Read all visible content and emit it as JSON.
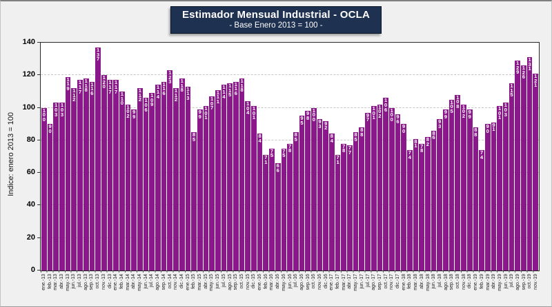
{
  "title": {
    "main": "Estimador Mensual Industrial - OCLA",
    "subtitle": "- Base Enero 2013 = 100 -"
  },
  "colors": {
    "bar": "#8b188b",
    "title_box_bg": "#1e3150",
    "plot_bg": "#ffffff",
    "page_bg": "#f0f0f0",
    "gridline": "#c6c6c6",
    "value_label": "#ffffff"
  },
  "chart_data": {
    "type": "bar",
    "title": "Estimador Mensual Industrial - OCLA",
    "subtitle": "- Base Enero 2013 = 100 -",
    "xlabel": "",
    "ylabel": "Indice: enero 2013 = 100",
    "ylim": [
      0,
      140
    ],
    "yticks": [
      0,
      20,
      40,
      60,
      80,
      100,
      120,
      140
    ],
    "gridline_values": [
      20,
      40,
      60,
      80,
      100,
      120
    ],
    "grid": "horizontal-dashed",
    "legend": "none",
    "value_labels_shown": true,
    "categories": [
      "ene.-13",
      "feb.-13",
      "mar.-13",
      "abr.-13",
      "may.-13",
      "jun.-13",
      "jul.-13",
      "ago.-13",
      "sep.-13",
      "oct.-13",
      "nov.-13",
      "dic.-13",
      "ene.-14",
      "feb.-14",
      "mar.-14",
      "abr.-14",
      "may.-14",
      "jun.-14",
      "jul.-14",
      "ago.-14",
      "sep.-14",
      "oct.-14",
      "nov.-14",
      "dic.-14",
      "ene.-15",
      "feb.-15",
      "mar.-15",
      "abr.-15",
      "may.-15",
      "jun.-15",
      "jul.-15",
      "ago.-15",
      "sep.-15",
      "oct.-15",
      "nov.-15",
      "dic.-15",
      "ene.-16",
      "feb.-16",
      "mar.-16",
      "abr.-16",
      "may.-16",
      "jun.-16",
      "jul.-16",
      "ago.-16",
      "sep.-16",
      "oct.-16",
      "nov.-16",
      "dic.-16",
      "ene.-17",
      "feb.-17",
      "mar.-17",
      "abr.-17",
      "may.-17",
      "jun.-17",
      "jul.-17",
      "ago.-17",
      "sep.-17",
      "oct.-17",
      "nov.-17",
      "dic.-17",
      "ene.-18",
      "feb.-18",
      "mar.-18",
      "abr.-18",
      "may.-18",
      "jun.-18",
      "jul.-18",
      "ago.-18",
      "sep.-18",
      "oct.-18",
      "nov.-18",
      "dic.-18",
      "ene.-19",
      "feb.-19",
      "mar.-19",
      "abr.-19",
      "may.-19",
      "jun.-19",
      "jul.-19",
      "ago.-19",
      "sep.-19",
      "oct.-19",
      "nov.-19"
    ],
    "values": [
      100,
      90,
      103,
      103,
      119,
      112,
      117,
      118,
      116,
      137,
      120,
      117,
      117,
      110,
      102,
      99,
      112,
      106,
      109,
      114,
      116,
      123,
      112,
      118,
      113,
      85,
      99,
      101,
      107,
      111,
      114,
      115,
      116,
      118,
      104,
      101,
      84,
      71,
      75,
      66,
      75,
      78,
      85,
      95,
      98,
      100,
      93,
      92,
      84,
      71,
      78,
      77,
      85,
      88,
      97,
      101,
      102,
      106,
      100,
      96,
      90,
      74,
      81,
      78,
      82,
      86,
      93,
      99,
      105,
      108,
      102,
      99,
      88,
      74,
      90,
      91,
      101,
      103,
      115,
      129,
      126,
      131,
      121
    ]
  }
}
